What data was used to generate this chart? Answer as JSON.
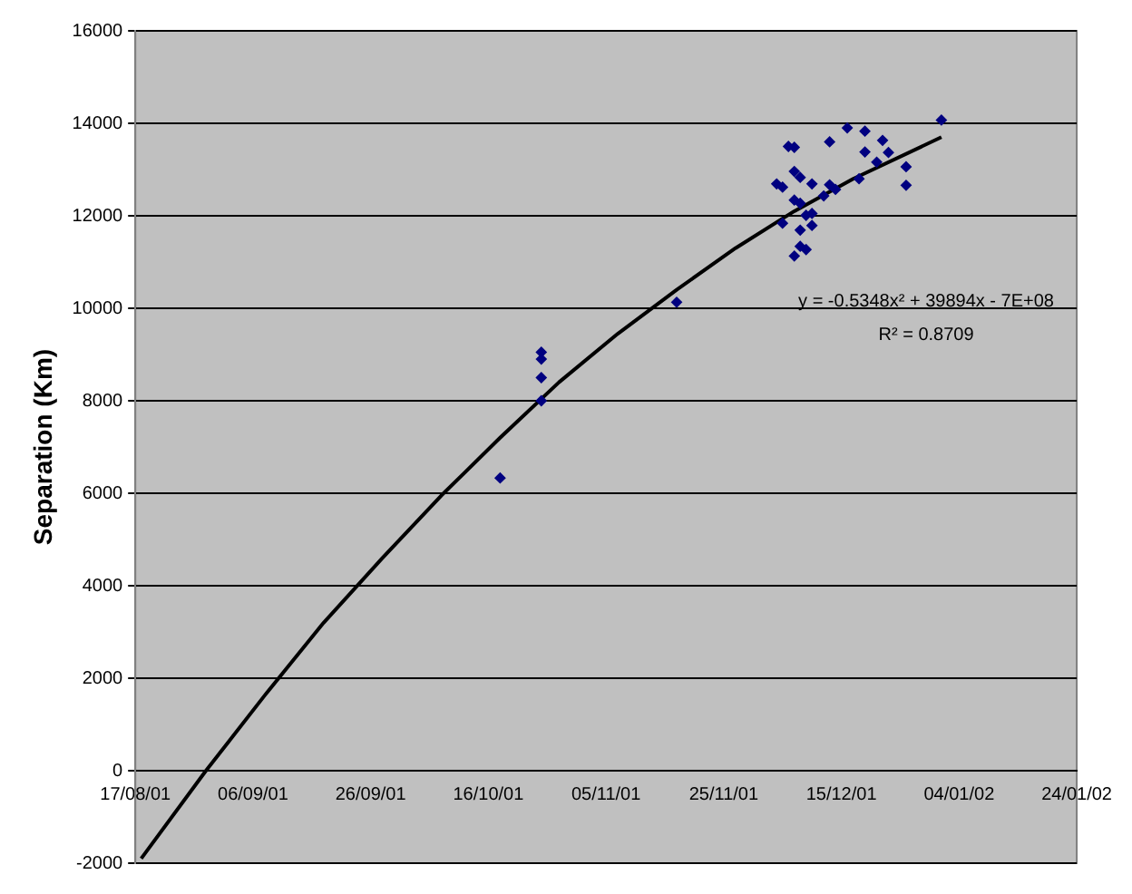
{
  "chart_data": {
    "type": "scatter",
    "ylabel": "Separation (Km)",
    "series": [
      {
        "type": "scatter",
        "color": "#000080",
        "marker": "diamond",
        "x": [
          "2001-10-18",
          "2001-10-25",
          "2001-10-25",
          "2001-10-25",
          "2001-10-25",
          "2001-11-17",
          "2002-01-01",
          "2001-12-16",
          "2001-12-19",
          "2001-12-13",
          "2001-12-22",
          "2001-12-06",
          "2001-12-07",
          "2001-12-19",
          "2001-12-23",
          "2001-12-21",
          "2001-12-26",
          "2001-12-26",
          "2001-12-07",
          "2001-12-08",
          "2001-12-04",
          "2001-12-05",
          "2001-12-10",
          "2001-12-18",
          "2001-12-13",
          "2001-12-14",
          "2001-12-12",
          "2001-12-07",
          "2001-12-08",
          "2001-12-09",
          "2001-12-10",
          "2001-12-10",
          "2001-12-05",
          "2001-12-08",
          "2001-12-08",
          "2001-12-09",
          "2001-12-07"
        ],
        "values": [
          6330,
          9050,
          8900,
          8500,
          8000,
          10130,
          14070,
          13900,
          13830,
          13600,
          13630,
          13500,
          13480,
          13380,
          13370,
          13160,
          13060,
          12660,
          12960,
          12830,
          12690,
          12620,
          12690,
          12800,
          12670,
          12570,
          12430,
          12340,
          12270,
          12010,
          12050,
          11790,
          11840,
          11690,
          11340,
          11270,
          11130
        ]
      },
      {
        "type": "line",
        "color": "#000000",
        "marker": "none",
        "line_style": "solid",
        "x": [
          "2001-08-18",
          "2001-08-29",
          "2001-09-08",
          "2001-09-18",
          "2001-09-28",
          "2001-10-08",
          "2001-10-18",
          "2001-10-28",
          "2001-11-07",
          "2001-11-17",
          "2001-11-27",
          "2001-12-07",
          "2001-12-17",
          "2002-01-01"
        ],
        "values": [
          -1900,
          0,
          1630,
          3200,
          4600,
          5950,
          7200,
          8400,
          9450,
          10400,
          11300,
          12100,
          12800,
          13700
        ]
      }
    ],
    "xlim": [
      "2001-08-17",
      "2002-01-24"
    ],
    "xticks": [
      {
        "value": "2001-08-17",
        "label": "17/08/01"
      },
      {
        "value": "2001-09-06",
        "label": "06/09/01"
      },
      {
        "value": "2001-09-26",
        "label": "26/09/01"
      },
      {
        "value": "2001-10-16",
        "label": "16/10/01"
      },
      {
        "value": "2001-11-05",
        "label": "05/11/01"
      },
      {
        "value": "2001-11-25",
        "label": "25/11/01"
      },
      {
        "value": "2001-12-15",
        "label": "15/12/01"
      },
      {
        "value": "2002-01-04",
        "label": "04/01/02"
      },
      {
        "value": "2002-01-24",
        "label": "24/01/02"
      }
    ],
    "ylim": [
      -2000,
      16000
    ],
    "yticks": [
      -2000,
      0,
      2000,
      4000,
      6000,
      8000,
      10000,
      12000,
      14000,
      16000
    ],
    "grid": "y",
    "legend": false,
    "annotations": [
      "y = -0.5348x² + 39894x - 7E+08",
      "R² = 0.8709"
    ]
  }
}
